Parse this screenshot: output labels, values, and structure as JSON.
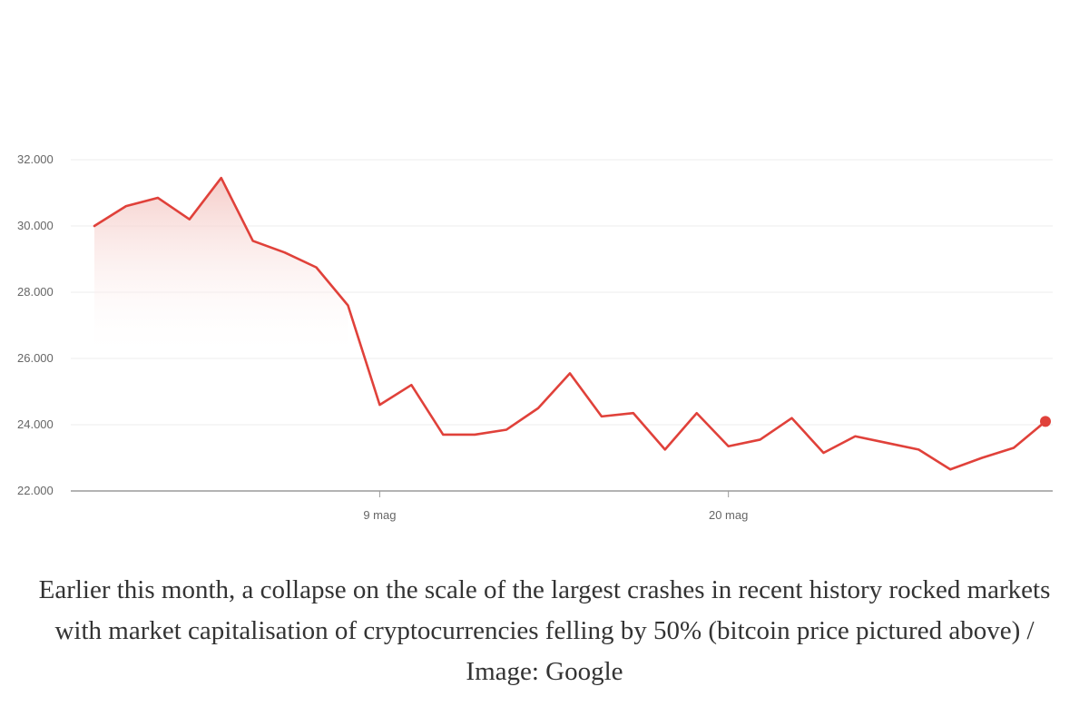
{
  "chart_data": {
    "type": "area",
    "title": "",
    "xlabel": "",
    "ylabel": "",
    "ylim": [
      22000,
      32000
    ],
    "y_ticks": [
      "22.000",
      "24.000",
      "26.000",
      "28.000",
      "30.000",
      "32.000"
    ],
    "x_ticks": [
      {
        "label": "9 mag",
        "index": 9
      },
      {
        "label": "20 mag",
        "index": 20
      }
    ],
    "grid": true,
    "line_color": "#e0413a",
    "fill_color": "#f4c7c3",
    "series": [
      {
        "values": [
          30000,
          30600,
          30850,
          30200,
          31450,
          29550,
          29200,
          28750,
          27600,
          24600,
          25200,
          23700,
          23700,
          23850,
          24500,
          25550,
          24250,
          24350,
          23250,
          24350,
          23350,
          23550,
          24200,
          23150,
          23650,
          23450,
          23250,
          22650,
          23000,
          23300,
          24100
        ]
      }
    ],
    "fill_until_index": 8,
    "last_point_marker": true
  },
  "caption": "Earlier this month, a collapse on the scale of the largest crashes in recent history rocked markets with market capitalisation of cryptocurrencies felling by 50% (bitcoin price pictured above) / Image: Google"
}
